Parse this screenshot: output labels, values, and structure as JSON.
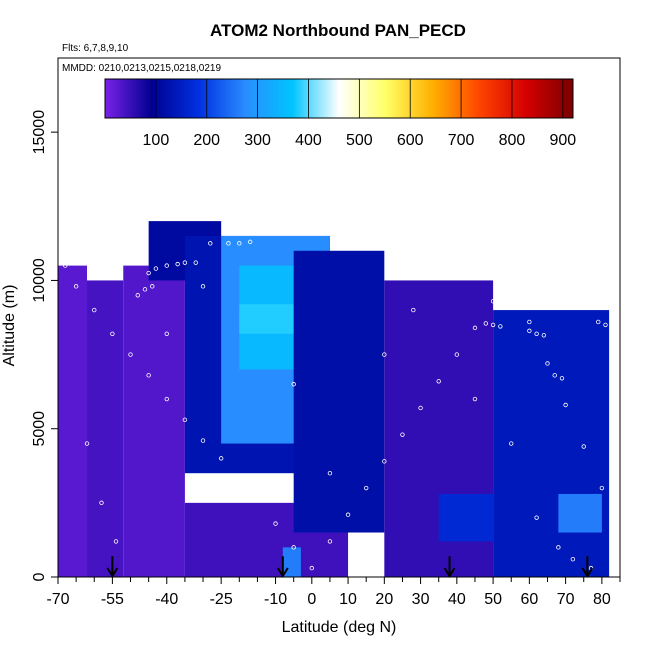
{
  "chart_data": {
    "type": "heatmap",
    "title": "ATOM2 Northbound PAN_PECD",
    "subtitle_flights": "Flts: 6,7,8,9,10",
    "subtitle_dates": "MMDD: 0210,0213,0215,0218,0219",
    "xlabel": "Latitude (deg N)",
    "ylabel": "Altitude (m)",
    "xlim": [
      -70,
      85
    ],
    "ylim": [
      0,
      17500
    ],
    "x_ticks": [
      "-70",
      "-55",
      "-40",
      "-25",
      "-10",
      "0",
      "10",
      "20",
      "30",
      "40",
      "50",
      "60",
      "70",
      "80"
    ],
    "x_tick_values": [
      -70,
      -55,
      -40,
      -25,
      -10,
      0,
      10,
      20,
      30,
      40,
      50,
      60,
      70,
      80
    ],
    "x_minor_ticks": [
      -65,
      -60,
      -50,
      -45,
      -35,
      -30,
      -20,
      -15,
      -5,
      5,
      15,
      25,
      35,
      45,
      55,
      65,
      75,
      85
    ],
    "y_ticks": [
      "0",
      "5000",
      "10000",
      "15000"
    ],
    "y_tick_values": [
      0,
      5000,
      10000,
      15000
    ],
    "colorbar": {
      "range": [
        0,
        920
      ],
      "tick_labels": [
        "100",
        "200",
        "300",
        "400",
        "500",
        "600",
        "700",
        "800",
        "900"
      ],
      "tick_values": [
        100,
        200,
        300,
        400,
        500,
        600,
        700,
        800,
        900
      ],
      "colors": [
        "#7a22e8",
        "#000090",
        "#0030e0",
        "#2a8cff",
        "#00c4ff",
        "#ffffff",
        "#ffff66",
        "#ffb000",
        "#ff4400",
        "#d40000",
        "#7a0000"
      ]
    },
    "colors": {
      "background_field": "#7a22e8",
      "low_altitude_band": "#8a2be2",
      "mid_blue": "#1c2ee0",
      "bright_plume": "#00c4ff",
      "marker_outline": "#ffffff",
      "arrow": "#000000"
    },
    "regions": [
      {
        "lat": [
          -70,
          -62
        ],
        "alt": [
          0,
          10500
        ],
        "value": 25
      },
      {
        "lat": [
          -62,
          -52
        ],
        "alt": [
          0,
          10000
        ],
        "value": 40
      },
      {
        "lat": [
          -52,
          -35
        ],
        "alt": [
          0,
          10500
        ],
        "value": 30
      },
      {
        "lat": [
          -35,
          10
        ],
        "alt": [
          0,
          2500
        ],
        "value": 45
      },
      {
        "lat": [
          -45,
          -25
        ],
        "alt": [
          10000,
          12000
        ],
        "value": 110
      },
      {
        "lat": [
          -35,
          5
        ],
        "alt": [
          3500,
          11500
        ],
        "value": 130
      },
      {
        "lat": [
          -25,
          5
        ],
        "alt": [
          4500,
          11500
        ],
        "value": 280
      },
      {
        "lat": [
          -20,
          -5
        ],
        "alt": [
          7000,
          10500
        ],
        "value": 350
      },
      {
        "lat": [
          -20,
          5
        ],
        "alt": [
          8200,
          9200
        ],
        "value": 380
      },
      {
        "lat": [
          -5,
          20
        ],
        "alt": [
          1500,
          11000
        ],
        "value": 120
      },
      {
        "lat": [
          20,
          50
        ],
        "alt": [
          0,
          10000
        ],
        "value": 55
      },
      {
        "lat": [
          35,
          50
        ],
        "alt": [
          1200,
          2800
        ],
        "value": 170
      },
      {
        "lat": [
          50,
          82
        ],
        "alt": [
          0,
          9000
        ],
        "value": 140
      },
      {
        "lat": [
          68,
          80
        ],
        "alt": [
          1500,
          2800
        ],
        "value": 260
      },
      {
        "lat": [
          -8,
          -3
        ],
        "alt": [
          0,
          1000
        ],
        "value": 260
      }
    ],
    "flight_track_points": [
      [
        -52,
        11900
      ],
      [
        -50,
        11950
      ],
      [
        -48,
        12000
      ],
      [
        -28,
        11250
      ],
      [
        -23,
        11250
      ],
      [
        -20,
        11250
      ],
      [
        -17,
        11300
      ],
      [
        -14,
        11900
      ],
      [
        -12,
        11900
      ],
      [
        -10,
        11950
      ],
      [
        -45,
        10250
      ],
      [
        -43,
        10400
      ],
      [
        -40,
        10500
      ],
      [
        -37,
        10550
      ],
      [
        -35,
        10600
      ],
      [
        -32,
        10600
      ],
      [
        -48,
        9500
      ],
      [
        -46,
        9700
      ],
      [
        -44,
        9800
      ],
      [
        35,
        11000
      ],
      [
        37,
        11000
      ],
      [
        39,
        11000
      ],
      [
        48,
        8550
      ],
      [
        50,
        8500
      ],
      [
        52,
        8450
      ],
      [
        60,
        8300
      ],
      [
        62,
        8200
      ],
      [
        64,
        8150
      ],
      [
        67,
        6800
      ],
      [
        69,
        6700
      ],
      [
        70,
        9600
      ],
      [
        72,
        9500
      ],
      [
        75,
        9500
      ],
      [
        79,
        8600
      ],
      [
        81,
        8500
      ],
      [
        -68,
        10500
      ],
      [
        -65,
        9800
      ],
      [
        -60,
        9000
      ],
      [
        -55,
        8200
      ],
      [
        -50,
        7500
      ],
      [
        -45,
        6800
      ],
      [
        -40,
        6000
      ],
      [
        -35,
        5300
      ],
      [
        -30,
        4600
      ],
      [
        -25,
        4000
      ],
      [
        -20,
        3300
      ],
      [
        -15,
        2600
      ],
      [
        -10,
        1800
      ],
      [
        -5,
        1000
      ],
      [
        0,
        300
      ],
      [
        5,
        1200
      ],
      [
        10,
        2100
      ],
      [
        15,
        3000
      ],
      [
        20,
        3900
      ],
      [
        25,
        4800
      ],
      [
        30,
        5700
      ],
      [
        35,
        6600
      ],
      [
        40,
        7500
      ],
      [
        45,
        8400
      ],
      [
        50,
        9300
      ],
      [
        55,
        9800
      ],
      [
        60,
        8600
      ],
      [
        65,
        7200
      ],
      [
        70,
        5800
      ],
      [
        75,
        4400
      ],
      [
        80,
        3000
      ],
      [
        -62,
        4500
      ],
      [
        -58,
        2500
      ],
      [
        -54,
        1200
      ],
      [
        -40,
        8200
      ],
      [
        -30,
        9800
      ],
      [
        -5,
        6500
      ],
      [
        5,
        3500
      ],
      [
        20,
        7500
      ],
      [
        28,
        9000
      ],
      [
        45,
        6000
      ],
      [
        55,
        4500
      ],
      [
        62,
        2000
      ],
      [
        68,
        1000
      ],
      [
        72,
        600
      ],
      [
        77,
        300
      ]
    ],
    "arrows_lat": [
      -55,
      -8,
      38,
      76
    ]
  }
}
